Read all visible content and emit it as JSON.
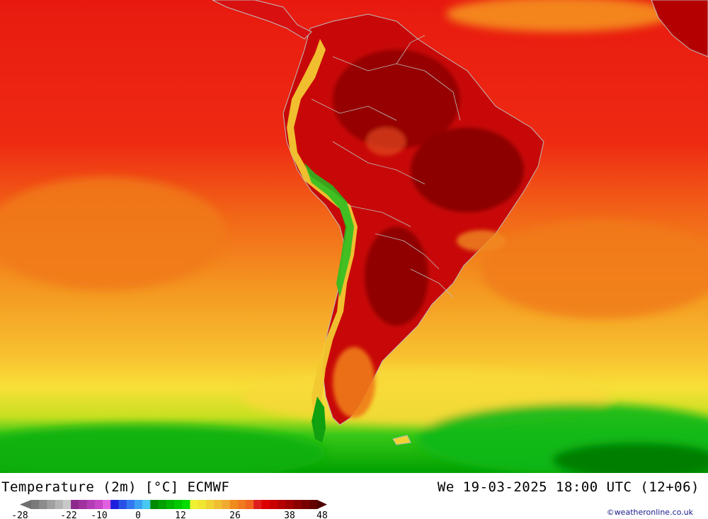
{
  "map": {
    "title": "Temperature (2m) [°C] ECMWF",
    "valid_time": "We 19-03-2025 18:00 UTC (12+06)",
    "credit": "©weatheronline.co.uk"
  },
  "legend": {
    "tick_labels": [
      "-28",
      "-22",
      "-10",
      "0",
      "12",
      "26",
      "38",
      "48"
    ],
    "colors": [
      "#7a7a7a",
      "#8c8c8c",
      "#a0a0a0",
      "#b4b4b4",
      "#c8c8c8",
      "#8c2a8c",
      "#a032a0",
      "#b43cb4",
      "#c846c8",
      "#e060e0",
      "#1e1edc",
      "#2850e6",
      "#3278f0",
      "#3ca0f0",
      "#46c8f0",
      "#008c00",
      "#00a000",
      "#00b400",
      "#00c800",
      "#00dc00",
      "#f0f032",
      "#f0e632",
      "#f0d232",
      "#f0be32",
      "#f0aa32",
      "#f08c1e",
      "#f0781e",
      "#f0641e",
      "#e01e1e",
      "#dc0000",
      "#c80000",
      "#b40000",
      "#a00000",
      "#8c0000",
      "#780000",
      "#640000"
    ]
  }
}
